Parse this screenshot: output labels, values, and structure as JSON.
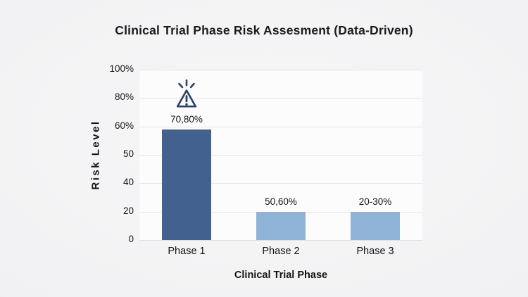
{
  "chart_data": {
    "type": "bar",
    "title": "Clinical Trial Phase Risk Assesment (Data-Driven)",
    "xlabel": "Clinical Trial Phase",
    "ylabel": "Risk Level",
    "categories": [
      "Phase 1",
      "Phase 2",
      "Phase 3"
    ],
    "values_display": [
      "70,80%",
      "50,60%",
      "20-30%"
    ],
    "y_ticks_top_to_bottom": [
      "100%",
      "80%",
      "60%",
      "50",
      "40",
      "20",
      "0"
    ],
    "axis_note": "y-axis tick labels are evenly spaced along the axis",
    "grid": "horizontal",
    "legend_position": "none",
    "bars": [
      {
        "category": "Phase 1",
        "value_label": "70,80%",
        "height_fraction": 0.649,
        "color": "#42618f",
        "icon": "warning-triangle"
      },
      {
        "category": "Phase 2",
        "value_label": "50,60%",
        "height_fraction": 0.165,
        "color": "#90b4d8",
        "icon": null
      },
      {
        "category": "Phase 3",
        "value_label": "20-30%",
        "height_fraction": 0.165,
        "color": "#90b4d8",
        "icon": null
      }
    ],
    "colors": {
      "bar_primary": "#42618f",
      "bar_secondary": "#90b4d8",
      "icon": "#2c4167",
      "gridline": "#e4e5e8",
      "text": "#161616",
      "canvas_bg": "#f0f0f2",
      "plot_bg": "#fcfcfd"
    }
  }
}
